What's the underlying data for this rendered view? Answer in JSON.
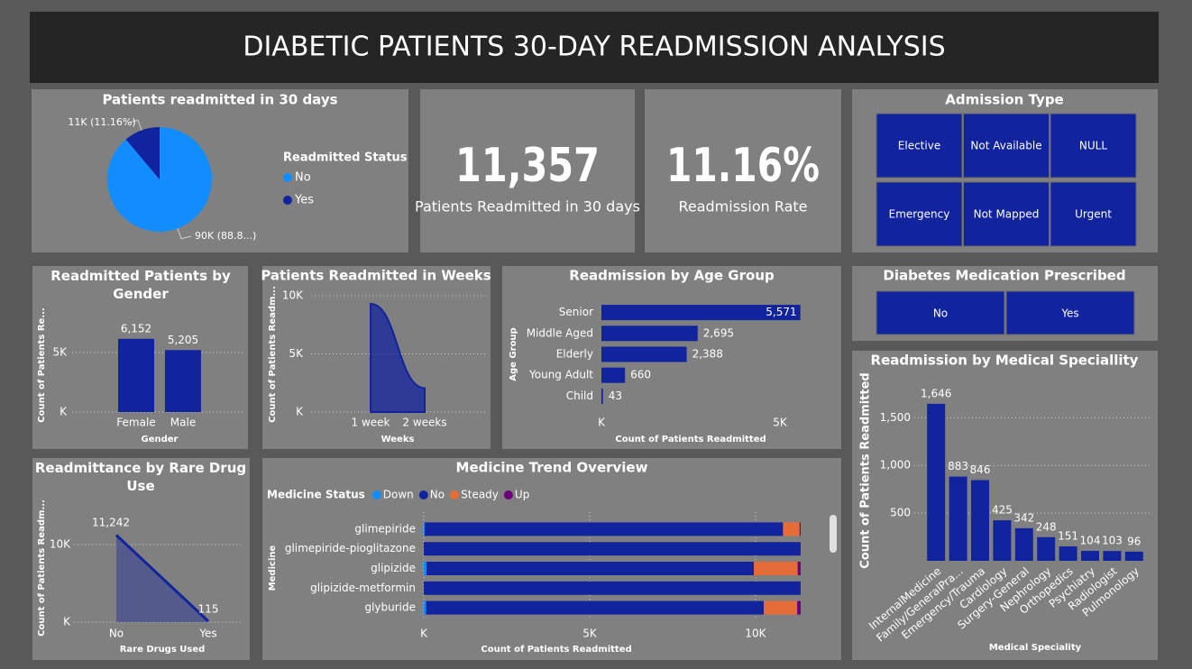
{
  "header": {
    "title": "DIABETIC PATIENTS 30-DAY READMISSION ANALYSIS"
  },
  "cards": [
    {
      "value": "11,357",
      "label": "Patients Readmitted in 30 days"
    },
    {
      "value": "11.16%",
      "label": "Readmission Rate"
    }
  ],
  "slicers": [
    {
      "title": "Admission Type",
      "items": [
        "Elective",
        "Not Available",
        "NULL",
        "Emergency",
        "Not Mapped",
        "Urgent"
      ]
    },
    {
      "title": "Diabetes Medication Prescribed",
      "items": [
        "No",
        "Yes"
      ]
    }
  ],
  "chart_data": [
    {
      "type": "pie",
      "title": "Patients readmitted in 30 days",
      "legend_title": "Readmitted Status",
      "categories": [
        "No",
        "Yes"
      ],
      "values": [
        90409,
        11357
      ],
      "value_labels": [
        "90K (88.8...)",
        "11K (11.16%)"
      ],
      "colors": [
        "#118DFF",
        "#12239E"
      ]
    },
    {
      "type": "bar",
      "title": "Readmitted Patients by Gender",
      "categories": [
        "Female",
        "Male"
      ],
      "values": [
        6152,
        5205
      ],
      "value_labels": [
        "6,152",
        "5,205"
      ],
      "color": "#12239E",
      "ylim": [
        0,
        7500
      ],
      "yticks": [
        {
          "value": 0,
          "label": "K"
        },
        {
          "value": 5000,
          "label": "5K"
        }
      ],
      "x_label": "Gender",
      "y_label": "Count of Patients Re...",
      "grid": true
    },
    {
      "type": "area",
      "title": "Patients Readmitted in Weeks",
      "categories": [
        "1 week",
        "2 weeks"
      ],
      "values": [
        9300,
        2057
      ],
      "color": "#12239E",
      "ylim": [
        0,
        10000
      ],
      "yticks": [
        {
          "value": 0,
          "label": "K"
        },
        {
          "value": 5000,
          "label": "5K"
        },
        {
          "value": 10000,
          "label": "10K"
        }
      ],
      "x_label": "Weeks",
      "y_label": "Count of Patients Readm...",
      "grid": true
    },
    {
      "type": "hbar",
      "title": "Readmission by Age Group",
      "categories": [
        "Senior",
        "Middle Aged",
        "Elderly",
        "Young Adult",
        "Child"
      ],
      "values": [
        5571,
        2695,
        2388,
        660,
        43
      ],
      "value_labels": [
        "5,571",
        "2,695",
        "2,388",
        "660",
        "43"
      ],
      "color": "#12239E",
      "xlim": [
        0,
        5600
      ],
      "xticks": [
        {
          "value": 0,
          "label": "K"
        },
        {
          "value": 5000,
          "label": "5K"
        }
      ],
      "x_label": "Count of Patients Readmitted",
      "y_label": "Age Group",
      "grid": false
    },
    {
      "type": "line",
      "title": "Readmittance by Rare Drug Use",
      "categories": [
        "No",
        "Yes"
      ],
      "values": [
        11242,
        115
      ],
      "value_labels": [
        "11,242",
        "115"
      ],
      "color": "#12239E",
      "ylim": [
        0,
        12000
      ],
      "yticks": [
        {
          "value": 0,
          "label": "K"
        },
        {
          "value": 10000,
          "label": "10K"
        }
      ],
      "x_label": "Rare Drugs Used",
      "y_label": "Count of Patients Readm...",
      "grid": true
    },
    {
      "type": "hbar",
      "title": "Medicine Trend Overview",
      "legend_title": "Medicine Status",
      "categories": [
        "glimepiride",
        "glimepiride-pioglitazone",
        "glipizide",
        "glipizide-metformin",
        "glyburide"
      ],
      "series": [
        {
          "name": "Down",
          "color": "#118DFF",
          "values": [
            27,
            0,
            80,
            0,
            70
          ]
        },
        {
          "name": "No",
          "color": "#12239E",
          "values": [
            10800,
            11357,
            9870,
            11357,
            10175
          ]
        },
        {
          "name": "Steady",
          "color": "#E66C37",
          "values": [
            500,
            0,
            1320,
            0,
            1010
          ]
        },
        {
          "name": "Up",
          "color": "#6B007B",
          "values": [
            30,
            0,
            87,
            0,
            102
          ]
        }
      ],
      "xlim": [
        0,
        11400
      ],
      "xticks": [
        {
          "value": 0,
          "label": "K"
        },
        {
          "value": 5000,
          "label": "5K"
        },
        {
          "value": 10000,
          "label": "10K"
        }
      ],
      "x_label": "Count of Patients Readmitted",
      "y_label": "Medicine",
      "grid": true
    },
    {
      "type": "bar",
      "title": "Readmission by Medical Speciallity",
      "categories": [
        "InternalMedicine",
        "Family/GeneralPra...",
        "Emergency/Trauma",
        "Cardiology",
        "Surgery-General",
        "Nephrology",
        "Orthopedics",
        "Psychiatry",
        "Radiologist",
        "Pulmonology"
      ],
      "values": [
        1646,
        883,
        846,
        425,
        342,
        248,
        151,
        104,
        103,
        96
      ],
      "value_labels": [
        "1,646",
        "883",
        "846",
        "425",
        "342",
        "248",
        "151",
        "104",
        "103",
        "96"
      ],
      "color": "#12239E",
      "ylim": [
        0,
        1900
      ],
      "yticks": [
        500,
        {
          "value": 1000,
          "label": "1,000"
        },
        {
          "value": 1500,
          "label": "1,500"
        }
      ],
      "x_label": "Medical Speciality",
      "y_label": "Count of Patients Readmitted",
      "grid": true
    }
  ]
}
